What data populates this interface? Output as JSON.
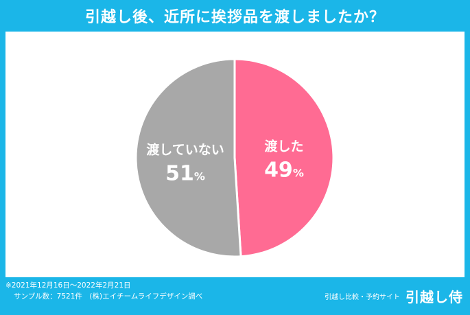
{
  "title": "引越し後、近所に挨拶品を渡しましたか？",
  "footer": {
    "date_range": "※2021年12月16日～2022年2月21日",
    "sample": "サンプル数：7521件　(株)エイチームライフデザイン調べ"
  },
  "brand": {
    "tagline": "引越し比較・予約サイト",
    "logo": "引越し侍"
  },
  "chart_data": {
    "type": "pie",
    "title": "引越し後、近所に挨拶品を渡しましたか？",
    "slices": [
      {
        "label": "渡した",
        "value": 49,
        "display": "49",
        "unit": "%",
        "color": "#ff6b93"
      },
      {
        "label": "渡していない",
        "value": 51,
        "display": "51",
        "unit": "%",
        "color": "#a8a8a8"
      }
    ]
  }
}
